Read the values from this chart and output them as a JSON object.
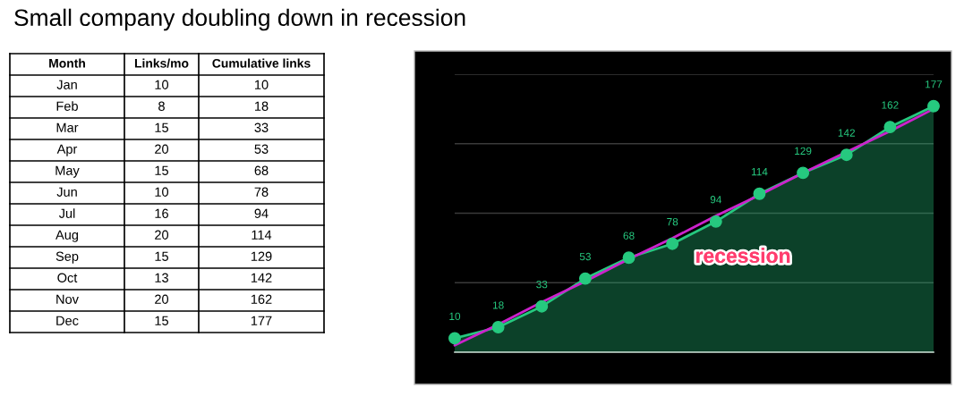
{
  "chart_data": [
    {
      "type": "other",
      "title": "Small company doubling down in recession",
      "xlabel": "Month",
      "categories": [
        "Jan",
        "Feb",
        "Mar",
        "Apr",
        "May",
        "Jun",
        "Jul",
        "Aug",
        "Sep",
        "Oct",
        "Nov",
        "Dec"
      ],
      "series": [
        {
          "name": "Links/mo",
          "values": [
            10,
            8,
            15,
            20,
            15,
            10,
            16,
            20,
            15,
            13,
            20,
            15
          ]
        },
        {
          "name": "Cumulative links",
          "values": [
            10,
            18,
            33,
            53,
            68,
            78,
            94,
            114,
            129,
            142,
            162,
            177
          ]
        }
      ],
      "data_labels": true
    },
    {
      "type": "area",
      "categories": [
        null,
        null,
        null,
        null,
        null,
        null,
        null,
        null,
        null,
        null,
        null,
        null
      ],
      "series": [
        {
          "type": "area",
          "color": "#26c97f",
          "marker": "circle",
          "values": [
            10,
            18,
            33,
            53,
            68,
            78,
            94,
            114,
            129,
            142,
            162,
            177
          ],
          "value_labels": [
            "10",
            "18",
            "33",
            "53",
            "68",
            "78",
            "94",
            "114",
            "129",
            "142",
            "162",
            "177"
          ]
        },
        {
          "type": "line",
          "color": "#cc22cc",
          "values": [
            5,
            20,
            36,
            51,
            67,
            82,
            98,
            113,
            129,
            144,
            159,
            175
          ]
        }
      ],
      "ylim": [
        0,
        200
      ],
      "yticks": [
        {
          "value": 0,
          "label": null
        },
        {
          "value": 50,
          "label": null
        },
        {
          "value": 100,
          "label": null
        },
        {
          "value": 150,
          "label": null
        },
        {
          "value": 200,
          "label": null
        }
      ],
      "grid": "y",
      "annotations": [
        "recession"
      ]
    }
  ]
}
